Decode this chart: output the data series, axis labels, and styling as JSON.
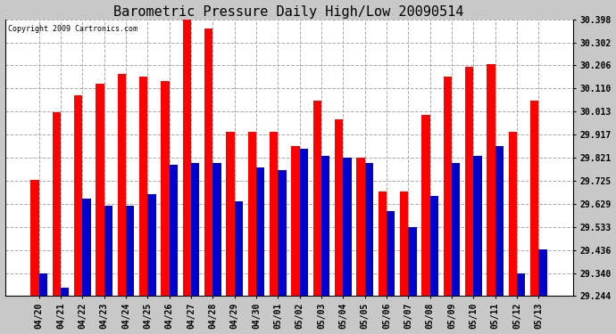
{
  "title": "Barometric Pressure Daily High/Low 20090514",
  "copyright": "Copyright 2009 Cartronics.com",
  "categories": [
    "04/20",
    "04/21",
    "04/22",
    "04/23",
    "04/24",
    "04/25",
    "04/26",
    "04/27",
    "04/28",
    "04/29",
    "04/30",
    "05/01",
    "05/02",
    "05/03",
    "05/04",
    "05/05",
    "05/06",
    "05/07",
    "05/08",
    "05/09",
    "05/10",
    "05/11",
    "05/12",
    "05/13"
  ],
  "high_values": [
    29.73,
    30.01,
    30.08,
    30.13,
    30.17,
    30.16,
    30.14,
    30.4,
    30.36,
    29.93,
    29.93,
    29.93,
    29.87,
    30.06,
    29.98,
    29.82,
    29.68,
    29.68,
    30.0,
    30.16,
    30.2,
    30.21,
    29.93,
    30.06
  ],
  "low_values": [
    29.34,
    29.28,
    29.65,
    29.62,
    29.62,
    29.67,
    29.79,
    29.8,
    29.8,
    29.64,
    29.78,
    29.77,
    29.86,
    29.83,
    29.82,
    29.8,
    29.6,
    29.53,
    29.66,
    29.8,
    29.83,
    29.87,
    29.34,
    29.44
  ],
  "high_color": "#ff0000",
  "low_color": "#0000cc",
  "fig_bg_color": "#c8c8c8",
  "plot_bg_color": "#ffffff",
  "ylim_min": 29.244,
  "ylim_max": 30.398,
  "yticks": [
    29.244,
    29.34,
    29.436,
    29.533,
    29.629,
    29.725,
    29.821,
    29.917,
    30.013,
    30.11,
    30.206,
    30.302,
    30.398
  ],
  "grid_color": "#aaaaaa",
  "title_fontsize": 11,
  "tick_fontsize": 7,
  "bar_width": 0.38
}
